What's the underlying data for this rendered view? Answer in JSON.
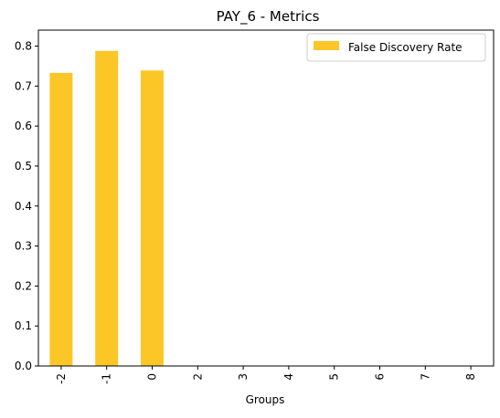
{
  "chart_data": {
    "type": "bar",
    "title": "PAY_6 - Metrics",
    "xlabel": "Groups",
    "ylabel": "",
    "categories": [
      "-2",
      "-1",
      "0",
      "2",
      "3",
      "4",
      "5",
      "6",
      "7",
      "8"
    ],
    "series": [
      {
        "name": "False Discovery Rate",
        "color": "#fcc626",
        "values": [
          0.733,
          0.788,
          0.739,
          0,
          0,
          0,
          0,
          0,
          0,
          0
        ]
      }
    ],
    "ylim": [
      0,
      0.84
    ],
    "yticks": [
      "0.0",
      "0.1",
      "0.2",
      "0.3",
      "0.4",
      "0.5",
      "0.6",
      "0.7",
      "0.8"
    ],
    "ytick_values": [
      0,
      0.1,
      0.2,
      0.3,
      0.4,
      0.5,
      0.6,
      0.7,
      0.8
    ],
    "grid": false,
    "legend_position": "top-right",
    "xtick_rotation": "vertical"
  }
}
